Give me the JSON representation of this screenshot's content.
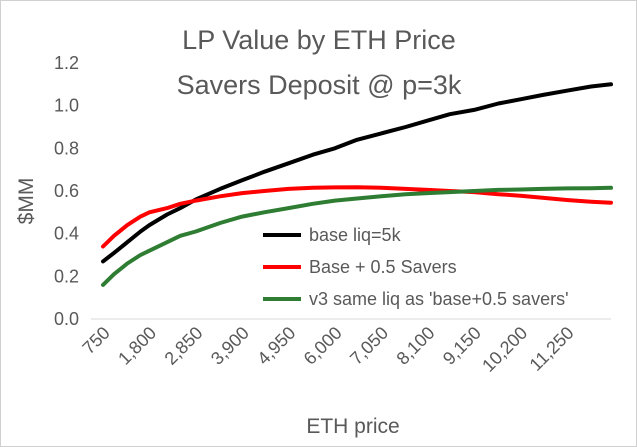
{
  "chart_data": {
    "type": "line",
    "title": "LP Value by ETH Price",
    "subtitle": "Savers Deposit @ p=3k",
    "xlabel": "ETH price",
    "ylabel": "$MM",
    "ylim": [
      0,
      1.2
    ],
    "yticks": [
      "0.0",
      "0.2",
      "0.4",
      "0.6",
      "0.8",
      "1.0",
      "1.2"
    ],
    "xlim": [
      750,
      12250
    ],
    "xticks": [
      "750",
      "1,800",
      "2,850",
      "3,900",
      "4,950",
      "6,000",
      "7,050",
      "8,100",
      "9,150",
      "10,200",
      "11,250"
    ],
    "xtick_values": [
      750,
      1800,
      2850,
      3900,
      4950,
      6000,
      7050,
      8100,
      9150,
      10200,
      11250
    ],
    "grid": false,
    "legend_position": "lower-right",
    "series": [
      {
        "name": "base liq=5k",
        "color": "#000000",
        "points": [
          [
            750,
            0.27
          ],
          [
            1000,
            0.31
          ],
          [
            1300,
            0.36
          ],
          [
            1600,
            0.41
          ],
          [
            1800,
            0.44
          ],
          [
            2200,
            0.49
          ],
          [
            2500,
            0.52
          ],
          [
            2850,
            0.56
          ],
          [
            3400,
            0.61
          ],
          [
            3900,
            0.65
          ],
          [
            4400,
            0.69
          ],
          [
            4950,
            0.73
          ],
          [
            5500,
            0.77
          ],
          [
            6000,
            0.8
          ],
          [
            6500,
            0.84
          ],
          [
            7050,
            0.87
          ],
          [
            7600,
            0.9
          ],
          [
            8100,
            0.93
          ],
          [
            8600,
            0.96
          ],
          [
            9150,
            0.98
          ],
          [
            9700,
            1.01
          ],
          [
            10200,
            1.03
          ],
          [
            10700,
            1.05
          ],
          [
            11250,
            1.07
          ],
          [
            11800,
            1.09
          ],
          [
            12250,
            1.1
          ]
        ]
      },
      {
        "name": "Base + 0.5 Savers",
        "color": "#ff0000",
        "points": [
          [
            750,
            0.34
          ],
          [
            1000,
            0.39
          ],
          [
            1300,
            0.44
          ],
          [
            1600,
            0.48
          ],
          [
            1800,
            0.5
          ],
          [
            2200,
            0.52
          ],
          [
            2500,
            0.54
          ],
          [
            2850,
            0.555
          ],
          [
            3400,
            0.575
          ],
          [
            3900,
            0.59
          ],
          [
            4400,
            0.6
          ],
          [
            4950,
            0.61
          ],
          [
            5500,
            0.615
          ],
          [
            6000,
            0.617
          ],
          [
            6500,
            0.618
          ],
          [
            7050,
            0.615
          ],
          [
            7600,
            0.61
          ],
          [
            8100,
            0.605
          ],
          [
            8600,
            0.6
          ],
          [
            9150,
            0.595
          ],
          [
            9700,
            0.585
          ],
          [
            10200,
            0.578
          ],
          [
            10700,
            0.568
          ],
          [
            11250,
            0.558
          ],
          [
            11800,
            0.55
          ],
          [
            12250,
            0.545
          ]
        ]
      },
      {
        "name": "v3 same liq as 'base+0.5 savers'",
        "color": "#2e7d32",
        "points": [
          [
            750,
            0.16
          ],
          [
            1000,
            0.21
          ],
          [
            1300,
            0.26
          ],
          [
            1600,
            0.3
          ],
          [
            1800,
            0.32
          ],
          [
            2200,
            0.36
          ],
          [
            2500,
            0.39
          ],
          [
            2850,
            0.41
          ],
          [
            3400,
            0.45
          ],
          [
            3900,
            0.48
          ],
          [
            4400,
            0.5
          ],
          [
            4950,
            0.52
          ],
          [
            5500,
            0.54
          ],
          [
            6000,
            0.555
          ],
          [
            6500,
            0.565
          ],
          [
            7050,
            0.575
          ],
          [
            7600,
            0.585
          ],
          [
            8100,
            0.59
          ],
          [
            8600,
            0.595
          ],
          [
            9150,
            0.6
          ],
          [
            9700,
            0.605
          ],
          [
            10200,
            0.607
          ],
          [
            10700,
            0.61
          ],
          [
            11250,
            0.612
          ],
          [
            11800,
            0.613
          ],
          [
            12250,
            0.615
          ]
        ]
      }
    ]
  }
}
